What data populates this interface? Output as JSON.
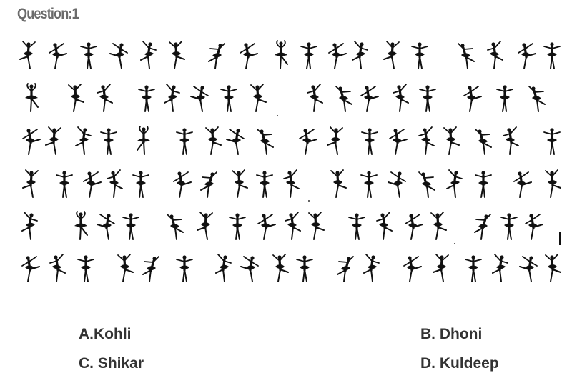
{
  "question": {
    "title": "Question:1"
  },
  "options": [
    {
      "label": "A.Kohli"
    },
    {
      "label": "B. Dhoni"
    },
    {
      "label": "C. Shikar"
    },
    {
      "label": "D. Kuldeep"
    }
  ],
  "puzzle": {
    "figure_icon": "ballerina-silhouette-icon",
    "figure_color": "#111111",
    "rows": [
      [
        0,
        1,
        2,
        1,
        3,
        0,
        4,
        1,
        5,
        2,
        1,
        3,
        0,
        2,
        4,
        3,
        1,
        2,
        0
      ],
      [
        5,
        0,
        3,
        2,
        3,
        1,
        2,
        0,
        3,
        4,
        1,
        3,
        2,
        1,
        2,
        4
      ],
      [
        1,
        0,
        3,
        2,
        5,
        2,
        0,
        1,
        4,
        1,
        0,
        2,
        1,
        3,
        0,
        4,
        3,
        2
      ],
      [
        0,
        2,
        1,
        3,
        2,
        1,
        4,
        0,
        2,
        3,
        0,
        2,
        1,
        4,
        3,
        2,
        1,
        0
      ],
      [
        3,
        5,
        1,
        2,
        4,
        0,
        2,
        1,
        3,
        0,
        2,
        3,
        1,
        0,
        4,
        2,
        1
      ],
      [
        1,
        3,
        2,
        0,
        4,
        2,
        3,
        1,
        0,
        2,
        4,
        3,
        1,
        0,
        2,
        3,
        1,
        0,
        2
      ]
    ]
  }
}
